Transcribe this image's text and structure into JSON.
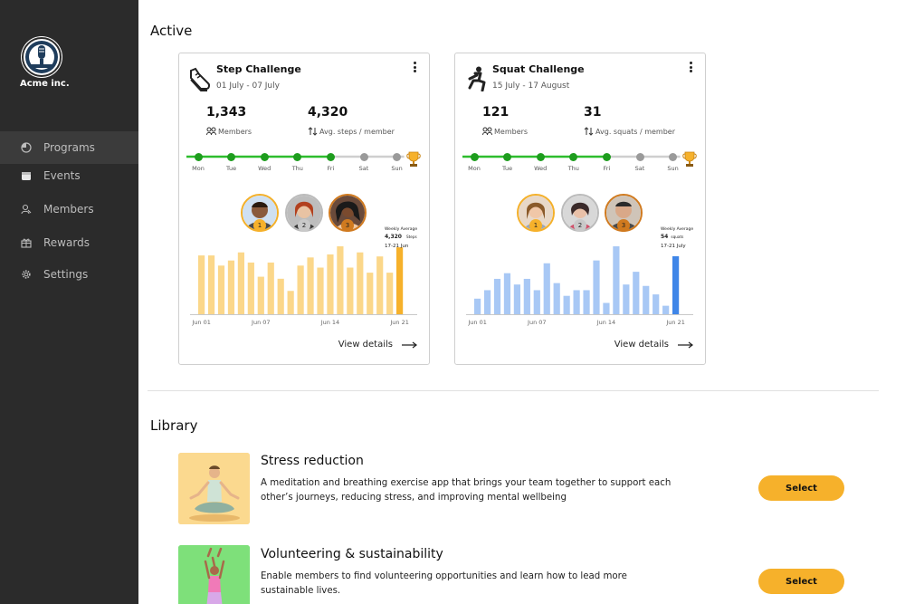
{
  "brand": {
    "name": "Acme inc."
  },
  "sidebar": {
    "items": [
      {
        "label": "Programs",
        "icon": "clock-icon",
        "active": true
      },
      {
        "label": "Events",
        "icon": "calendar-icon",
        "active": false
      },
      {
        "label": "Members",
        "icon": "user-icon",
        "active": false
      },
      {
        "label": "Rewards",
        "icon": "gift-icon",
        "active": false
      },
      {
        "label": "Settings",
        "icon": "gear-icon",
        "active": false
      }
    ]
  },
  "active": {
    "title": "Active",
    "cards": [
      {
        "title": "Step Challenge",
        "dates": "01 July - 07 July",
        "icon": "sneaker-icon",
        "members_value": "1,343",
        "members_label": "Members",
        "avg_value": "4,320",
        "avg_label": "Avg. steps / member",
        "days": [
          "Mon",
          "Tue",
          "Wed",
          "Thu",
          "Fri",
          "Sat",
          "Sun"
        ],
        "days_completed": 5,
        "tooltip": {
          "title": "Weekly Average",
          "value": "4,320",
          "unit": "Steps",
          "range": "17-21 Jun"
        },
        "view_label": "View details",
        "bar_color": "#fbd78a",
        "highlight_color": "#f6b12b"
      },
      {
        "title": "Squat Challenge",
        "dates": "15 July - 17 August",
        "icon": "squat-icon",
        "members_value": "121",
        "members_label": "Members",
        "avg_value": "31",
        "avg_label": "Avg. squats / member",
        "days": [
          "Mon",
          "Tue",
          "Wed",
          "Thu",
          "Fri",
          "Sat",
          "Sun"
        ],
        "days_completed": 5,
        "tooltip": {
          "title": "Weekly Average",
          "value": "54",
          "unit": "squats",
          "range": "17-21 July"
        },
        "view_label": "View details",
        "bar_color": "#a8c8f5",
        "highlight_color": "#3f86e8"
      }
    ]
  },
  "chart_data": [
    {
      "type": "bar",
      "categories": [
        "Jun 01",
        "Jun 02",
        "Jun 03",
        "Jun 04",
        "Jun 05",
        "Jun 06",
        "Jun 07",
        "Jun 08",
        "Jun 09",
        "Jun 10",
        "Jun 11",
        "Jun 12",
        "Jun 13",
        "Jun 14",
        "Jun 15",
        "Jun 16",
        "Jun 17",
        "Jun 18",
        "Jun 19",
        "Jun 20",
        "Jun 21"
      ],
      "x_tick_labels": [
        "Jun 01",
        "Jun 07",
        "Jun 14",
        "Jun 21"
      ],
      "values": [
        58,
        58,
        48,
        53,
        61,
        51,
        37,
        51,
        35,
        23,
        48,
        56,
        46,
        59,
        67,
        46,
        61,
        41,
        57,
        41,
        66
      ],
      "highlight_index": 20
    },
    {
      "type": "bar",
      "categories": [
        "Jun 01",
        "Jun 02",
        "Jun 03",
        "Jun 04",
        "Jun 05",
        "Jun 06",
        "Jun 07",
        "Jun 08",
        "Jun 09",
        "Jun 10",
        "Jun 11",
        "Jun 12",
        "Jun 13",
        "Jun 14",
        "Jun 15",
        "Jun 16",
        "Jun 17",
        "Jun 18",
        "Jun 19",
        "Jun 20",
        "Jun 21"
      ],
      "x_tick_labels": [
        "Jun 01",
        "Jun 07",
        "Jun 14",
        "Jun 21"
      ],
      "values": [
        11,
        17,
        25,
        29,
        21,
        25,
        17,
        36,
        22,
        13,
        17,
        17,
        38,
        8,
        48,
        21,
        30,
        20,
        14,
        6,
        41
      ],
      "highlight_index": 20
    }
  ],
  "library": {
    "title": "Library",
    "items": [
      {
        "title": "Stress reduction",
        "desc": "A meditation and breathing exercise app that brings your team together to support each other’s journeys, reducing stress, and improving mental wellbeing",
        "button": "Select",
        "thumb_bg": "#fbd98f"
      },
      {
        "title": "Volunteering & sustainability",
        "desc": "Enable members to find volunteering opportunities and learn how to lead more sustainable lives.",
        "button": "Select",
        "thumb_bg": "#7ee07a"
      }
    ]
  },
  "rank_labels": [
    "1",
    "2",
    "3"
  ],
  "colors": {
    "sidebar": "#2b2b2b",
    "accent": "#f6b12b",
    "progress": "#2dbd2d",
    "progress_dot": "#1e9d1e",
    "inactive": "#9a9a9a"
  }
}
